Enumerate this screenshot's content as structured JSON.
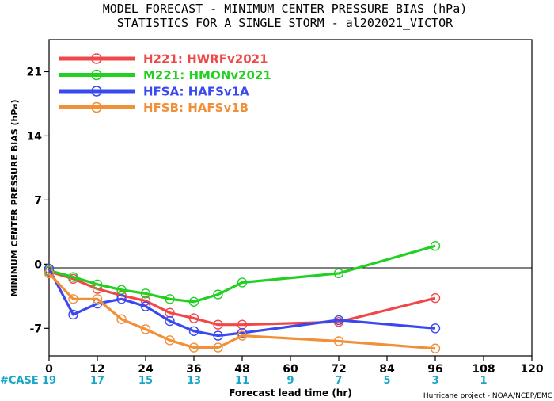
{
  "chart_data": {
    "type": "line",
    "title_line1": "MODEL FORECAST - MINIMUM CENTER PRESSURE BIAS (hPa)",
    "title_line2": "STATISTICS FOR A SINGLE STORM - al202021_VICTOR",
    "xlabel": "Forecast lead time (hr)",
    "ylabel": "MINIMUM CENTER PRESSURE BIAS (hPa)",
    "xlim": [
      0,
      120
    ],
    "ylim": [
      -10,
      24.5
    ],
    "x_ticks": [
      "0",
      "12",
      "24",
      "36",
      "48",
      "60",
      "72",
      "84",
      "96",
      "108",
      "120"
    ],
    "y_ticks": [
      "-7",
      "0",
      "7",
      "14",
      "21"
    ],
    "zero_line": true,
    "legend_position": "top-left",
    "case_label": "#CASE",
    "cases": [
      {
        "x": 0,
        "n": "19"
      },
      {
        "x": 12,
        "n": "17"
      },
      {
        "x": 24,
        "n": "15"
      },
      {
        "x": 36,
        "n": "13"
      },
      {
        "x": 48,
        "n": "11"
      },
      {
        "x": 60,
        "n": "9"
      },
      {
        "x": 72,
        "n": "7"
      },
      {
        "x": 84,
        "n": "5"
      },
      {
        "x": 96,
        "n": "3"
      },
      {
        "x": 108,
        "n": "1"
      }
    ],
    "credit": "Hurricane project - NOAA/NCEP/EMC",
    "series": [
      {
        "name": "H221: HWRFv2021",
        "color": "#f04848",
        "points": [
          [
            0,
            -0.8
          ],
          [
            6,
            -1.6
          ],
          [
            12,
            -2.7
          ],
          [
            18,
            -3.4
          ],
          [
            24,
            -4.0
          ],
          [
            30,
            -5.3
          ],
          [
            36,
            -5.9
          ],
          [
            42,
            -6.6
          ],
          [
            48,
            -6.6
          ],
          [
            72,
            -6.3
          ],
          [
            96,
            -3.7
          ]
        ]
      },
      {
        "name": "M221: HMONv2021",
        "color": "#22d022",
        "points": [
          [
            0,
            -0.7
          ],
          [
            6,
            -1.4
          ],
          [
            12,
            -2.2
          ],
          [
            18,
            -2.8
          ],
          [
            24,
            -3.2
          ],
          [
            30,
            -3.8
          ],
          [
            36,
            -4.1
          ],
          [
            42,
            -3.3
          ],
          [
            48,
            -2.0
          ],
          [
            72,
            -1.0
          ],
          [
            96,
            2.0
          ]
        ]
      },
      {
        "name": "HFSA: HAFSv1A",
        "color": "#3a48f0",
        "points": [
          [
            0,
            -0.5
          ],
          [
            6,
            -5.5
          ],
          [
            12,
            -4.3
          ],
          [
            18,
            -3.8
          ],
          [
            24,
            -4.6
          ],
          [
            30,
            -6.2
          ],
          [
            36,
            -7.3
          ],
          [
            42,
            -7.8
          ],
          [
            48,
            -7.5
          ],
          [
            72,
            -6.1
          ],
          [
            96,
            -7.0
          ]
        ]
      },
      {
        "name": "HFSB: HAFSv1B",
        "color": "#f09038",
        "points": [
          [
            0,
            -1.0
          ],
          [
            6,
            -3.8
          ],
          [
            12,
            -3.8
          ],
          [
            18,
            -6.0
          ],
          [
            24,
            -7.1
          ],
          [
            30,
            -8.3
          ],
          [
            36,
            -9.1
          ],
          [
            42,
            -9.1
          ],
          [
            48,
            -7.8
          ],
          [
            72,
            -8.4
          ],
          [
            96,
            -9.2
          ]
        ]
      }
    ]
  }
}
